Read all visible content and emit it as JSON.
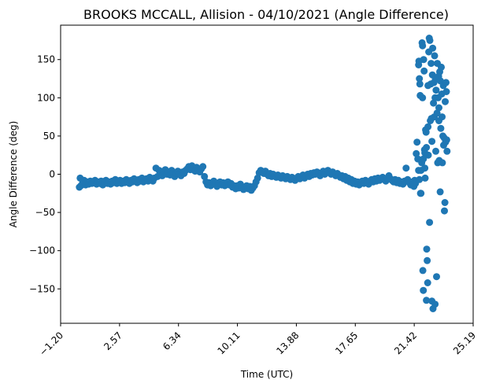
{
  "chart_data": {
    "type": "scatter",
    "title": "BROOKS MCCALL, Allision - 04/10/2021 (Angle Difference)",
    "xlabel": "Time (UTC)",
    "ylabel": "Angle Difference (deg)",
    "xlim": [
      -1.2,
      25.19
    ],
    "ylim": [
      -195,
      195
    ],
    "x_ticks": [
      -1.2,
      2.57,
      6.34,
      10.11,
      13.88,
      17.65,
      21.42,
      25.19
    ],
    "x_tick_labels": [
      "−1.20",
      "2.57",
      "6.34",
      "10.11",
      "13.88",
      "17.65",
      "21.42",
      "25.19"
    ],
    "y_ticks": [
      -150,
      -100,
      -50,
      0,
      50,
      100,
      150
    ],
    "y_tick_labels": [
      "−150",
      "−100",
      "−50",
      "0",
      "50",
      "100",
      "150"
    ],
    "grid": false,
    "legend": "none",
    "marker_color": "#1f77b4",
    "series": [
      {
        "points": [
          [
            0.0,
            -17
          ],
          [
            0.05,
            -5
          ],
          [
            0.1,
            -15
          ],
          [
            0.2,
            -12
          ],
          [
            0.3,
            -8
          ],
          [
            0.4,
            -14
          ],
          [
            0.5,
            -10
          ],
          [
            0.6,
            -13
          ],
          [
            0.7,
            -9
          ],
          [
            0.8,
            -12
          ],
          [
            0.9,
            -11
          ],
          [
            1.0,
            -8
          ],
          [
            1.1,
            -13
          ],
          [
            1.2,
            -10
          ],
          [
            1.3,
            -12
          ],
          [
            1.4,
            -9
          ],
          [
            1.5,
            -14
          ],
          [
            1.6,
            -11
          ],
          [
            1.7,
            -8
          ],
          [
            1.8,
            -12
          ],
          [
            1.9,
            -10
          ],
          [
            2.0,
            -13
          ],
          [
            2.1,
            -9
          ],
          [
            2.2,
            -11
          ],
          [
            2.3,
            -7
          ],
          [
            2.4,
            -12
          ],
          [
            2.5,
            -10
          ],
          [
            2.6,
            -8
          ],
          [
            2.7,
            -12
          ],
          [
            2.8,
            -9
          ],
          [
            2.9,
            -11
          ],
          [
            3.0,
            -7
          ],
          [
            3.1,
            -10
          ],
          [
            3.2,
            -12
          ],
          [
            3.3,
            -8
          ],
          [
            3.4,
            -10
          ],
          [
            3.5,
            -6
          ],
          [
            3.6,
            -9
          ],
          [
            3.7,
            -11
          ],
          [
            3.8,
            -7
          ],
          [
            3.9,
            -9
          ],
          [
            4.0,
            -5
          ],
          [
            4.1,
            -10
          ],
          [
            4.2,
            -8
          ],
          [
            4.3,
            -6
          ],
          [
            4.4,
            -9
          ],
          [
            4.5,
            -4
          ],
          [
            4.6,
            -7
          ],
          [
            4.7,
            -9
          ],
          [
            4.8,
            -5
          ],
          [
            4.9,
            8
          ],
          [
            5.0,
            -3
          ],
          [
            5.1,
            5
          ],
          [
            5.2,
            2
          ],
          [
            5.3,
            -2
          ],
          [
            5.4,
            4
          ],
          [
            5.5,
            6
          ],
          [
            5.6,
            0
          ],
          [
            5.7,
            3
          ],
          [
            5.8,
            -1
          ],
          [
            5.9,
            5
          ],
          [
            6.0,
            2
          ],
          [
            6.1,
            -3
          ],
          [
            6.2,
            1
          ],
          [
            6.3,
            4
          ],
          [
            6.4,
            0
          ],
          [
            6.5,
            -2
          ],
          [
            6.6,
            3
          ],
          [
            6.7,
            1
          ],
          [
            6.8,
            5
          ],
          [
            6.9,
            7
          ],
          [
            7.0,
            10
          ],
          [
            7.1,
            6
          ],
          [
            7.2,
            11
          ],
          [
            7.3,
            8
          ],
          [
            7.4,
            4
          ],
          [
            7.5,
            9
          ],
          [
            7.6,
            6
          ],
          [
            7.7,
            3
          ],
          [
            7.8,
            7
          ],
          [
            7.9,
            10
          ],
          [
            8.0,
            -3
          ],
          [
            8.1,
            -10
          ],
          [
            8.2,
            -14
          ],
          [
            8.3,
            -11
          ],
          [
            8.4,
            -15
          ],
          [
            8.5,
            -12
          ],
          [
            8.6,
            -9
          ],
          [
            8.7,
            -13
          ],
          [
            8.8,
            -16
          ],
          [
            8.9,
            -12
          ],
          [
            9.0,
            -10
          ],
          [
            9.1,
            -14
          ],
          [
            9.2,
            -11
          ],
          [
            9.3,
            -15
          ],
          [
            9.4,
            -13
          ],
          [
            9.5,
            -10
          ],
          [
            9.6,
            -14
          ],
          [
            9.7,
            -12
          ],
          [
            9.8,
            -17
          ],
          [
            9.9,
            -15
          ],
          [
            10.0,
            -19
          ],
          [
            10.1,
            -15
          ],
          [
            10.2,
            -18
          ],
          [
            10.3,
            -13
          ],
          [
            10.4,
            -16
          ],
          [
            10.5,
            -20
          ],
          [
            10.6,
            -17
          ],
          [
            10.7,
            -15
          ],
          [
            10.8,
            -19
          ],
          [
            10.9,
            -16
          ],
          [
            11.0,
            -21
          ],
          [
            11.1,
            -18
          ],
          [
            11.2,
            -15
          ],
          [
            11.3,
            -10
          ],
          [
            11.4,
            -5
          ],
          [
            11.5,
            2
          ],
          [
            11.6,
            5
          ],
          [
            11.7,
            3
          ],
          [
            11.8,
            1
          ],
          [
            11.9,
            4
          ],
          [
            12.0,
            0
          ],
          [
            12.1,
            -2
          ],
          [
            12.2,
            1
          ],
          [
            12.3,
            -3
          ],
          [
            12.4,
            0
          ],
          [
            12.5,
            -2
          ],
          [
            12.6,
            -4
          ],
          [
            12.7,
            -1
          ],
          [
            12.8,
            -3
          ],
          [
            12.9,
            -5
          ],
          [
            13.0,
            -2
          ],
          [
            13.1,
            -4
          ],
          [
            13.2,
            -6
          ],
          [
            13.3,
            -3
          ],
          [
            13.4,
            -5
          ],
          [
            13.5,
            -7
          ],
          [
            13.6,
            -4
          ],
          [
            13.7,
            -6
          ],
          [
            13.8,
            -8
          ],
          [
            13.9,
            -5
          ],
          [
            14.0,
            -3
          ],
          [
            14.1,
            -6
          ],
          [
            14.2,
            -4
          ],
          [
            14.3,
            -1
          ],
          [
            14.4,
            -5
          ],
          [
            14.5,
            -2
          ],
          [
            14.6,
            0
          ],
          [
            14.7,
            -3
          ],
          [
            14.8,
            1
          ],
          [
            14.9,
            -1
          ],
          [
            15.0,
            2
          ],
          [
            15.1,
            0
          ],
          [
            15.2,
            3
          ],
          [
            15.3,
            1
          ],
          [
            15.4,
            -2
          ],
          [
            15.5,
            2
          ],
          [
            15.6,
            4
          ],
          [
            15.7,
            0
          ],
          [
            15.8,
            3
          ],
          [
            15.9,
            5
          ],
          [
            16.0,
            2
          ],
          [
            16.1,
            0
          ],
          [
            16.2,
            3
          ],
          [
            16.3,
            1
          ],
          [
            16.4,
            -2
          ],
          [
            16.5,
            1
          ],
          [
            16.6,
            -1
          ],
          [
            16.7,
            -4
          ],
          [
            16.8,
            -2
          ],
          [
            16.9,
            -6
          ],
          [
            17.0,
            -3
          ],
          [
            17.1,
            -8
          ],
          [
            17.2,
            -5
          ],
          [
            17.3,
            -10
          ],
          [
            17.4,
            -7
          ],
          [
            17.5,
            -12
          ],
          [
            17.6,
            -9
          ],
          [
            17.7,
            -13
          ],
          [
            17.8,
            -10
          ],
          [
            17.9,
            -14
          ],
          [
            18.0,
            -11
          ],
          [
            18.1,
            -9
          ],
          [
            18.2,
            -12
          ],
          [
            18.3,
            -8
          ],
          [
            18.4,
            -11
          ],
          [
            18.5,
            -13
          ],
          [
            18.6,
            -9
          ],
          [
            18.7,
            -7
          ],
          [
            18.8,
            -10
          ],
          [
            18.9,
            -6
          ],
          [
            19.0,
            -9
          ],
          [
            19.1,
            -5
          ],
          [
            19.2,
            -8
          ],
          [
            19.3,
            -6
          ],
          [
            19.4,
            -4
          ],
          [
            19.5,
            -7
          ],
          [
            19.6,
            -9
          ],
          [
            19.7,
            -5
          ],
          [
            19.8,
            -2
          ],
          [
            19.9,
            -6
          ],
          [
            20.0,
            -8
          ],
          [
            20.1,
            -10
          ],
          [
            20.2,
            -7
          ],
          [
            20.3,
            -11
          ],
          [
            20.4,
            -8
          ],
          [
            20.5,
            -12
          ],
          [
            20.6,
            -10
          ],
          [
            20.7,
            -13
          ],
          [
            20.8,
            -9
          ],
          [
            20.9,
            8
          ],
          [
            21.0,
            -7
          ],
          [
            21.1,
            -11
          ],
          [
            21.2,
            -14
          ],
          [
            21.3,
            -10
          ],
          [
            21.4,
            -16
          ],
          [
            21.5,
            -12
          ],
          [
            21.55,
            27
          ],
          [
            21.6,
            42
          ],
          [
            21.65,
            20
          ],
          [
            21.7,
            143
          ],
          [
            21.72,
            148
          ],
          [
            21.75,
            125
          ],
          [
            21.78,
            118
          ],
          [
            21.8,
            103
          ],
          [
            21.82,
            -25
          ],
          [
            21.85,
            5
          ],
          [
            21.9,
            15
          ],
          [
            21.92,
            172
          ],
          [
            21.95,
            168
          ],
          [
            21.97,
            -126
          ],
          [
            22.0,
            -152
          ],
          [
            22.02,
            150
          ],
          [
            22.05,
            135
          ],
          [
            22.08,
            32
          ],
          [
            22.1,
            28
          ],
          [
            22.12,
            -5
          ],
          [
            22.15,
            58
          ],
          [
            22.18,
            55
          ],
          [
            22.2,
            35
          ],
          [
            22.22,
            -98
          ],
          [
            22.25,
            -113
          ],
          [
            22.28,
            -142
          ],
          [
            22.3,
            62
          ],
          [
            22.32,
            25
          ],
          [
            22.35,
            160
          ],
          [
            22.38,
            178
          ],
          [
            22.4,
            -63
          ],
          [
            22.42,
            175
          ],
          [
            22.45,
            70
          ],
          [
            22.48,
            118
          ],
          [
            22.5,
            145
          ],
          [
            22.52,
            73
          ],
          [
            22.55,
            -166
          ],
          [
            22.58,
            130
          ],
          [
            22.6,
            165
          ],
          [
            22.62,
            -176
          ],
          [
            22.65,
            93
          ],
          [
            22.68,
            120
          ],
          [
            22.7,
            75
          ],
          [
            22.72,
            155
          ],
          [
            22.75,
            -170
          ],
          [
            22.78,
            125
          ],
          [
            22.8,
            30
          ],
          [
            22.82,
            110
          ],
          [
            22.85,
            -134
          ],
          [
            22.88,
            80
          ],
          [
            22.9,
            145
          ],
          [
            22.92,
            15
          ],
          [
            22.95,
            100
          ],
          [
            22.98,
            128
          ],
          [
            23.0,
            87
          ],
          [
            23.02,
            18
          ],
          [
            23.05,
            134
          ],
          [
            23.08,
            -23
          ],
          [
            23.1,
            122
          ],
          [
            23.12,
            60
          ],
          [
            23.15,
            140
          ],
          [
            23.18,
            105
          ],
          [
            23.2,
            75
          ],
          [
            23.22,
            15
          ],
          [
            23.25,
            50
          ],
          [
            23.28,
            116
          ],
          [
            23.3,
            38
          ],
          [
            23.32,
            48
          ],
          [
            23.35,
            -48
          ],
          [
            23.38,
            -37
          ],
          [
            23.4,
            95
          ],
          [
            23.42,
            42
          ],
          [
            23.45,
            120
          ],
          [
            23.48,
            108
          ],
          [
            23.5,
            45
          ],
          [
            23.52,
            30
          ],
          [
            22.2,
            -165
          ],
          [
            21.45,
            -8
          ],
          [
            21.35,
            -13
          ],
          [
            21.7,
            5
          ],
          [
            21.75,
            -7
          ],
          [
            21.85,
            -25
          ],
          [
            22.0,
            20
          ],
          [
            22.1,
            8
          ],
          [
            21.95,
            100
          ],
          [
            22.3,
            116
          ],
          [
            22.55,
            43
          ],
          [
            22.75,
            100
          ],
          [
            23.0,
            70
          ]
        ]
      }
    ]
  }
}
